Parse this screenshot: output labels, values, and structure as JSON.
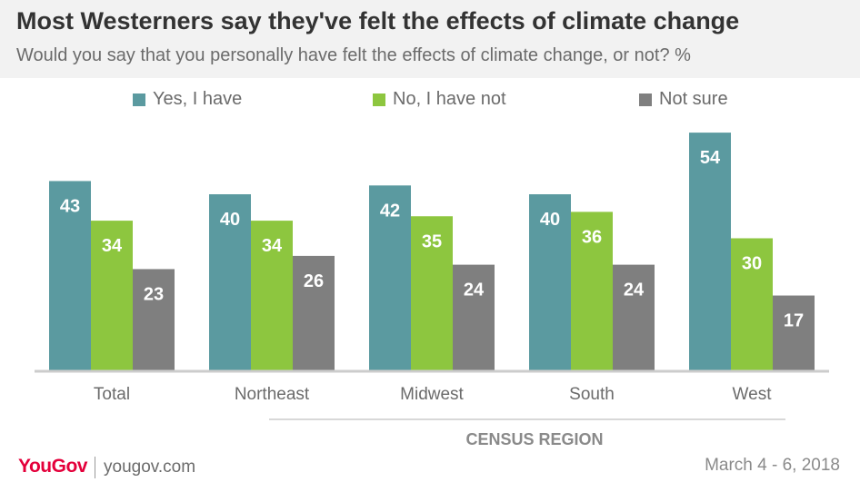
{
  "header": {
    "title": "Most Westerners say they've felt the effects of climate change",
    "subtitle": "Would you say that you personally have felt the effects of climate change, or not? %"
  },
  "chart_data": {
    "type": "bar",
    "categories": [
      "Total",
      "Northeast",
      "Midwest",
      "South",
      "West"
    ],
    "series": [
      {
        "name": "Yes, I have",
        "color": "#5b9aa0",
        "values": [
          43,
          40,
          42,
          40,
          54
        ]
      },
      {
        "name": "No, I have not",
        "color": "#8dc63f",
        "values": [
          34,
          34,
          35,
          36,
          30
        ]
      },
      {
        "name": "Not sure",
        "color": "#7f7f7f",
        "values": [
          23,
          26,
          24,
          24,
          17
        ]
      }
    ],
    "group_label": "CENSUS REGION",
    "ylim": [
      0,
      60
    ],
    "legend": "top",
    "grid": false
  },
  "footer": {
    "brand": "YouGov",
    "url": "yougov.com",
    "date": "March 4 - 6, 2018"
  }
}
